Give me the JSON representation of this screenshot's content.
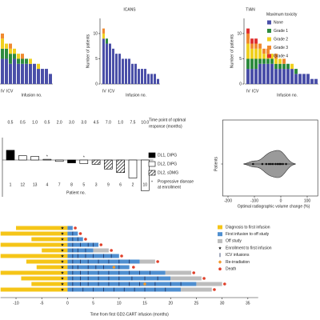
{
  "toxicity_legend": {
    "title": "Maximum toxicity",
    "items": [
      {
        "name": "None",
        "color": "#4a4fa8"
      },
      {
        "name": "Grade 1",
        "color": "#2e8b3e"
      },
      {
        "name": "Grade 2",
        "color": "#f0d020"
      },
      {
        "name": "Grade 3",
        "color": "#f08a30"
      },
      {
        "name": "Grade 4",
        "color": "#e03030"
      }
    ]
  },
  "chart_data": [
    {
      "type": "stacked_bar",
      "iv_label": "IV",
      "icv_label": "ICV",
      "xlabel": "Infusion no.",
      "ylim": [
        0,
        13
      ],
      "series": [
        {
          "values": [
            5,
            5,
            4,
            5,
            4,
            4,
            4,
            4,
            4,
            3,
            3,
            3,
            2
          ]
        },
        {
          "values": [
            2,
            2,
            2,
            1,
            1,
            1,
            1,
            0,
            0,
            0,
            0,
            0,
            0
          ]
        },
        {
          "values": [
            2,
            1,
            1,
            1,
            1,
            0,
            0,
            1,
            0,
            1,
            0,
            0,
            0
          ]
        },
        {
          "values": [
            1,
            0,
            1,
            0,
            0,
            1,
            0,
            0,
            0,
            0,
            0,
            0,
            0
          ]
        },
        {
          "values": [
            0,
            0,
            0,
            0,
            0,
            0,
            0,
            0,
            0,
            0,
            0,
            0,
            0
          ]
        }
      ]
    },
    {
      "type": "stacked_bar",
      "title": "ICANS",
      "ylabel": "Number of patients",
      "iv_label": "IV",
      "icv_label": "ICV",
      "xlabel": "Infusion no.",
      "ylim": [
        0,
        13
      ],
      "yticks": [
        0,
        5,
        10
      ],
      "series": [
        {
          "values": [
            9,
            8,
            8,
            7,
            6,
            6,
            5,
            5,
            5,
            4,
            4,
            3,
            3,
            3,
            2,
            2,
            2,
            1
          ]
        },
        {
          "values": [
            0,
            1,
            0,
            0,
            0,
            0,
            0,
            0,
            0,
            0,
            0,
            0,
            0,
            0,
            0,
            0,
            0,
            0
          ]
        },
        {
          "values": [
            1,
            0,
            0,
            0,
            0,
            0,
            0,
            0,
            0,
            0,
            0,
            0,
            0,
            0,
            0,
            0,
            0,
            0
          ]
        },
        {
          "values": [
            1,
            0,
            0,
            0,
            0,
            0,
            0,
            0,
            0,
            0,
            0,
            0,
            0,
            0,
            0,
            0,
            0,
            0
          ]
        },
        {
          "values": [
            0,
            0,
            0,
            0,
            0,
            0,
            0,
            0,
            0,
            0,
            0,
            0,
            0,
            0,
            0,
            0,
            0,
            0
          ]
        }
      ]
    },
    {
      "type": "stacked_bar",
      "title": "TIAN",
      "ylabel": "Number of patients",
      "iv_label": "IV",
      "icv_label": "ICV",
      "xlabel": "Infusion no.",
      "ylim": [
        0,
        13
      ],
      "yticks": [
        0,
        5,
        10
      ],
      "series": [
        {
          "values": [
            3,
            3,
            3,
            4,
            4,
            4,
            4,
            3,
            3,
            3,
            3,
            3,
            2,
            2,
            2,
            2,
            1,
            1
          ]
        },
        {
          "values": [
            2,
            2,
            2,
            1,
            1,
            1,
            1,
            1,
            1,
            1,
            1,
            0,
            1,
            0,
            0,
            0,
            0,
            0
          ]
        },
        {
          "values": [
            3,
            2,
            2,
            2,
            1,
            1,
            1,
            1,
            1,
            0,
            0,
            1,
            0,
            0,
            0,
            0,
            0,
            0
          ]
        },
        {
          "values": [
            2,
            1,
            1,
            1,
            1,
            1,
            0,
            1,
            0,
            1,
            0,
            0,
            0,
            0,
            0,
            0,
            0,
            0
          ]
        },
        {
          "values": [
            1,
            1,
            1,
            0,
            0,
            0,
            0,
            0,
            0,
            0,
            0,
            0,
            0,
            0,
            0,
            0,
            0,
            0
          ]
        }
      ]
    },
    {
      "type": "waterfall",
      "header": [
        "Time point of optimal",
        "response (months)"
      ],
      "response_time_labels": [
        "0.5",
        "0.5",
        "1.0",
        "0.5",
        "2.0",
        "3.0",
        "3.0",
        "4.5",
        "7.0",
        "1.0",
        "7.5",
        "10.0"
      ],
      "categories": [
        "1",
        "12",
        "13",
        "4",
        "7",
        "8",
        "5",
        "3",
        "9",
        "6",
        "2",
        "10"
      ],
      "values": [
        27,
        12,
        10,
        2,
        -4,
        -8,
        -10,
        -12,
        -25,
        -35,
        -50,
        -85
      ],
      "groups": [
        0,
        1,
        1,
        1,
        1,
        0,
        1,
        2,
        2,
        2,
        1,
        1
      ],
      "progressive": [
        false,
        false,
        false,
        true,
        false,
        false,
        true,
        false,
        false,
        false,
        false,
        false
      ],
      "xlabel": "Patient no.",
      "ylim": [
        -100,
        50
      ],
      "legend": [
        {
          "label": "DL1, DIPG",
          "style": "solid"
        },
        {
          "label": "DL2, DIPG",
          "style": "open"
        },
        {
          "label": "DL2, sDMG",
          "style": "hatched"
        }
      ],
      "progressive_marker": "*",
      "progressive_label": [
        "Progressive disease",
        "at enrollment"
      ]
    },
    {
      "type": "violin",
      "ylabel": "Patients",
      "xlabel": "Optimal radiographic volume change (%)",
      "xlim": [
        -220,
        140
      ],
      "xticks": [
        -200,
        -100,
        0,
        100
      ],
      "values": [
        -105,
        -70,
        -55,
        -45,
        -38,
        -30,
        -20,
        -12,
        -5,
        0,
        8,
        20
      ],
      "color": "#9a9a9a"
    },
    {
      "type": "swimmer",
      "xlabel": "Time from first GD2-CART infusion (months)",
      "xlim": [
        -13,
        37
      ],
      "xticks": [
        -10,
        -5,
        0,
        5,
        10,
        15,
        20,
        25,
        30,
        35
      ],
      "legend": [
        {
          "label": "Diagnosis to first infusion",
          "color": "#f5c518",
          "shape": "square"
        },
        {
          "label": "First infusion to off study",
          "color": "#4f8fd0",
          "shape": "square"
        },
        {
          "label": "Off study",
          "color": "#bdbdbd",
          "shape": "square"
        },
        {
          "label": "Enrollment to first infusion",
          "color": "#222222",
          "shape": "star"
        },
        {
          "label": "ICV infusions",
          "color": "#1a2a5a",
          "shape": "tick"
        },
        {
          "label": "Re-irradiation",
          "color": "#f39a2a",
          "shape": "diamond"
        },
        {
          "label": "Death",
          "color": "#e0402a",
          "shape": "dot"
        }
      ],
      "patients": [
        {
          "diagnosis": -10,
          "enrollment": -1,
          "off_study": 1,
          "end": 1,
          "death": 1.5,
          "icv": [],
          "reirradiation": []
        },
        {
          "diagnosis": -13,
          "enrollment": -1,
          "off_study": 2,
          "end": 2,
          "death": 2.5,
          "icv": [
            1
          ],
          "reirradiation": []
        },
        {
          "diagnosis": -7,
          "enrollment": -1,
          "off_study": 3,
          "end": 3,
          "death": 3.5,
          "icv": [
            1,
            2
          ],
          "reirradiation": []
        },
        {
          "diagnosis": -13,
          "enrollment": -1,
          "off_study": 6,
          "end": 6,
          "death": 6.5,
          "icv": [
            1,
            2.5,
            4,
            5
          ],
          "reirradiation": []
        },
        {
          "diagnosis": -5,
          "enrollment": -1,
          "off_study": 5,
          "end": 8,
          "death": 8.5,
          "icv": [
            1,
            2,
            3.5
          ],
          "reirradiation": []
        },
        {
          "diagnosis": -13,
          "enrollment": -1,
          "off_study": 10,
          "end": 10,
          "death": 10.5,
          "icv": [
            1,
            2,
            3.5,
            5,
            7,
            8.5
          ],
          "reirradiation": []
        },
        {
          "diagnosis": -8,
          "enrollment": -1,
          "off_study": 14,
          "end": 17,
          "death": 17.5,
          "icv": [
            1,
            2.5,
            4,
            6,
            8,
            10,
            12
          ],
          "reirradiation": []
        },
        {
          "diagnosis": -6,
          "enrollment": -1,
          "off_study": 12,
          "end": 12,
          "death": 12.8,
          "icv": [
            1,
            2,
            4,
            5.5,
            7,
            10
          ],
          "reirradiation": [
            9
          ]
        },
        {
          "diagnosis": -13,
          "enrollment": -1,
          "off_study": 19,
          "end": 24,
          "death": 24.5,
          "icv": [
            1,
            2.5,
            4,
            6,
            8,
            10,
            12,
            14,
            16
          ],
          "reirradiation": []
        },
        {
          "diagnosis": -9,
          "enrollment": -1,
          "off_study": 20,
          "end": 26,
          "death": 26.5,
          "icv": [
            1,
            2.5,
            4,
            6,
            8,
            10,
            12.5,
            15,
            17.5
          ],
          "reirradiation": []
        },
        {
          "diagnosis": -7,
          "enrollment": -1,
          "off_study": 25,
          "end": 30,
          "death": 30.5,
          "icv": [
            1,
            2.5,
            4,
            6,
            8,
            10,
            12,
            14,
            17,
            20,
            22
          ],
          "reirradiation": [
            15
          ]
        },
        {
          "diagnosis": -13,
          "enrollment": -1,
          "off_study": 22,
          "end": 28,
          "death": 28.5,
          "icv": [
            1,
            3,
            5,
            7,
            9,
            11,
            13,
            15,
            17,
            19
          ],
          "reirradiation": []
        }
      ]
    }
  ]
}
